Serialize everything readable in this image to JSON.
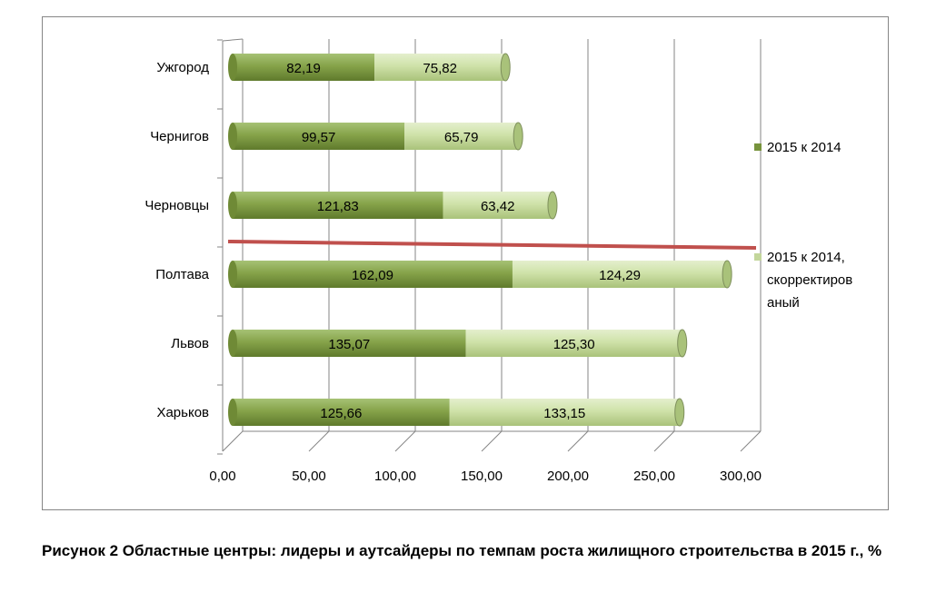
{
  "caption": "Рисунок 2 Областные центры: лидеры и аутсайдеры по темпам роста жилищного строительства в 2015 г., %",
  "chart_data": {
    "type": "bar",
    "orientation": "horizontal",
    "stacked": true,
    "three_d": true,
    "categories": [
      "Ужгород",
      "Чернигов",
      "Черновцы",
      "Полтава",
      "Львов",
      "Харьков"
    ],
    "series": [
      {
        "name": "2015 к 2014",
        "values": [
          82.19,
          99.57,
          121.83,
          162.09,
          135.07,
          125.66
        ],
        "labels": [
          "82,19",
          "99,57",
          "121,83",
          "162,09",
          "135,07",
          "125,66"
        ],
        "color": "#77933c"
      },
      {
        "name": "2015 к 2014, скорректированый",
        "legend_lines": [
          "2015 к 2014,",
          "скорректиров",
          "аный"
        ],
        "values": [
          75.82,
          65.79,
          63.42,
          124.29,
          125.3,
          133.15
        ],
        "labels": [
          "75,82",
          "65,79",
          "63,42",
          "124,29",
          "125,30",
          "133,15"
        ],
        "color": "#c3d69b"
      }
    ],
    "x_ticks": [
      "0,00",
      "50,00",
      "100,00",
      "150,00",
      "200,00",
      "250,00",
      "300,00"
    ],
    "xlim": [
      0,
      300
    ],
    "grid": true,
    "legend_position": "right",
    "separator_line": {
      "color": "#c0504d"
    }
  }
}
